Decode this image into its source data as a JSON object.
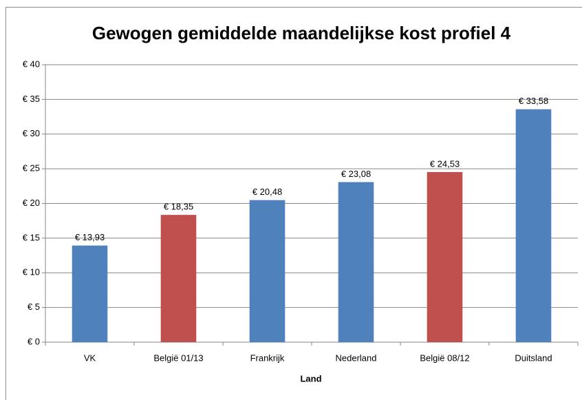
{
  "chart_data": {
    "type": "bar",
    "title": "Gewogen gemiddelde maandelijkse kost profiel 4",
    "x_label": "Land",
    "categories": [
      "VK",
      "België 01/13",
      "Frankrijk",
      "Nederland",
      "België 08/12",
      "Duitsland"
    ],
    "values": [
      13.93,
      18.35,
      20.48,
      23.08,
      24.53,
      33.58
    ],
    "value_labels": [
      "€ 13,93",
      "€ 18,35",
      "€ 20,48",
      "€ 23,08",
      "€ 24,53",
      "€ 33,58"
    ],
    "colors": [
      "#4f81bd",
      "#c0504d",
      "#4f81bd",
      "#4f81bd",
      "#c0504d",
      "#4f81bd"
    ],
    "ylim": [
      0,
      40
    ],
    "yticks": [
      {
        "value": 0,
        "label": "€ 0"
      },
      {
        "value": 5,
        "label": "€ 5"
      },
      {
        "value": 10,
        "label": "€ 10"
      },
      {
        "value": 15,
        "label": "€ 15"
      },
      {
        "value": 20,
        "label": "€ 20"
      },
      {
        "value": 25,
        "label": "€ 25"
      },
      {
        "value": 30,
        "label": "€ 30"
      },
      {
        "value": 35,
        "label": "€ 35"
      },
      {
        "value": 40,
        "label": "€ 40"
      }
    ],
    "grid": true
  }
}
